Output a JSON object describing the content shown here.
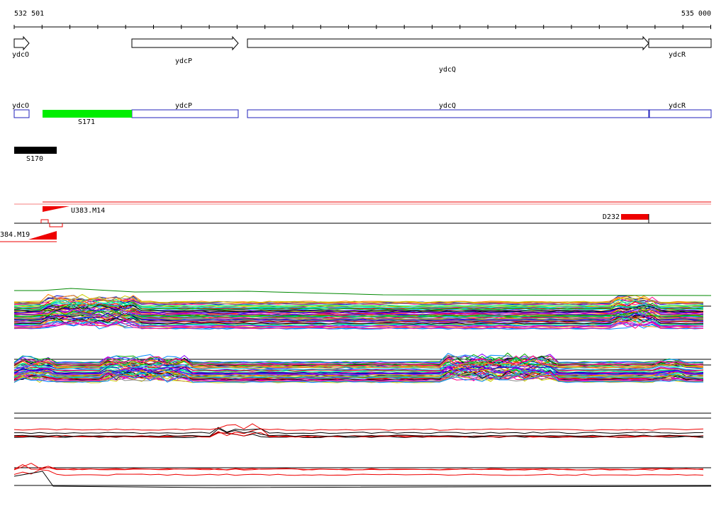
{
  "ruler": {
    "start": "532 501",
    "end": "535 000"
  },
  "genes": [
    {
      "label": "ydcO"
    },
    {
      "label": "ydcP"
    },
    {
      "label": "ydcQ"
    },
    {
      "label": "ydcR"
    }
  ],
  "gene_boxes": [
    {
      "label": "ydcO"
    },
    {
      "label": "ydcP"
    },
    {
      "label": "ydcQ"
    },
    {
      "label": "ydcR"
    }
  ],
  "segments": [
    {
      "label": "S171"
    },
    {
      "label": "S170"
    }
  ],
  "features": [
    {
      "label": "U383.M14"
    },
    {
      "label": "384.M19"
    },
    {
      "label": "D232"
    }
  ]
}
